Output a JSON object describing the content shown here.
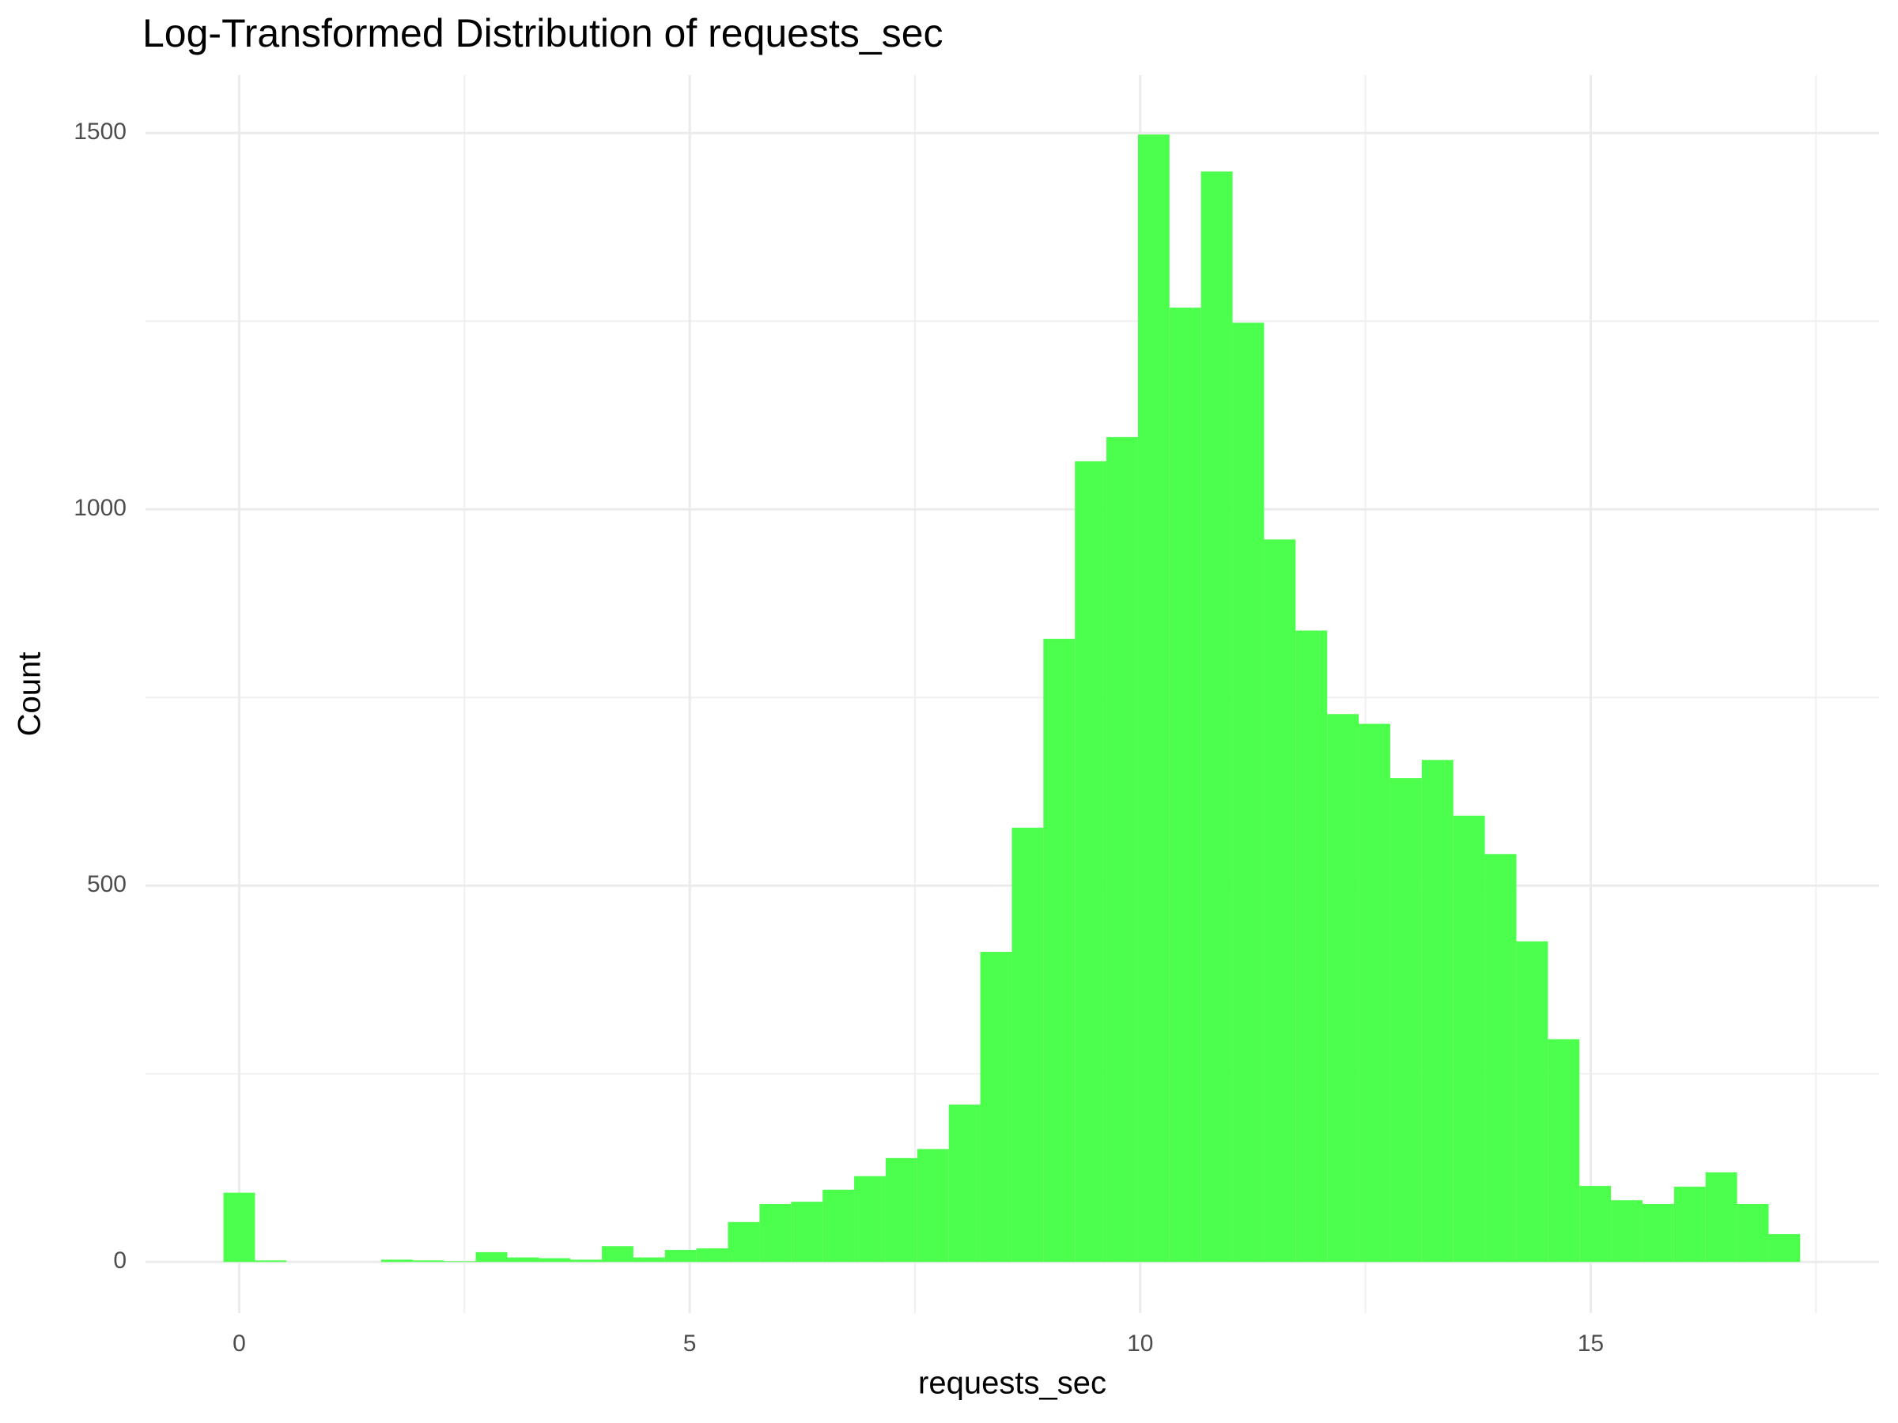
{
  "chart_data": {
    "type": "histogram",
    "title": "Log-Transformed Distribution of requests_sec",
    "x_label": "requests_sec",
    "y_label": "Count",
    "bins": [
      -0.175,
      0.175,
      0.525,
      0.875,
      1.225,
      1.575,
      1.925,
      2.275,
      2.625,
      2.975,
      3.325,
      3.675,
      4.025,
      4.375,
      4.725,
      5.075,
      5.425,
      5.775,
      6.125,
      6.475,
      6.825,
      7.175,
      7.525,
      7.875,
      8.225,
      8.575,
      8.925,
      9.275,
      9.625,
      9.975,
      10.325,
      10.675,
      11.025,
      11.375,
      11.725,
      12.075,
      12.425,
      12.775,
      13.125,
      13.475,
      13.825,
      14.175,
      14.525,
      14.875,
      15.225,
      15.575,
      15.925,
      16.275,
      16.625,
      16.975,
      17.325
    ],
    "values": [
      92,
      2,
      0,
      0,
      0,
      3,
      2,
      1,
      13,
      6,
      5,
      3,
      21,
      6,
      16,
      18,
      53,
      77,
      80,
      96,
      114,
      138,
      150,
      209,
      412,
      577,
      828,
      1064,
      1096,
      1498,
      1268,
      1449,
      1248,
      960,
      839,
      728,
      715,
      643,
      667,
      593,
      542,
      426,
      296,
      101,
      82,
      77,
      100,
      119,
      77,
      37
    ],
    "color": "#4dff4d",
    "xlim": [
      -1.04,
      18.2
    ],
    "ylim": [
      -68,
      1577
    ],
    "xticks": [
      0,
      5,
      10,
      15
    ],
    "yticks": [
      0,
      500,
      1000,
      1500
    ],
    "grid": true
  }
}
